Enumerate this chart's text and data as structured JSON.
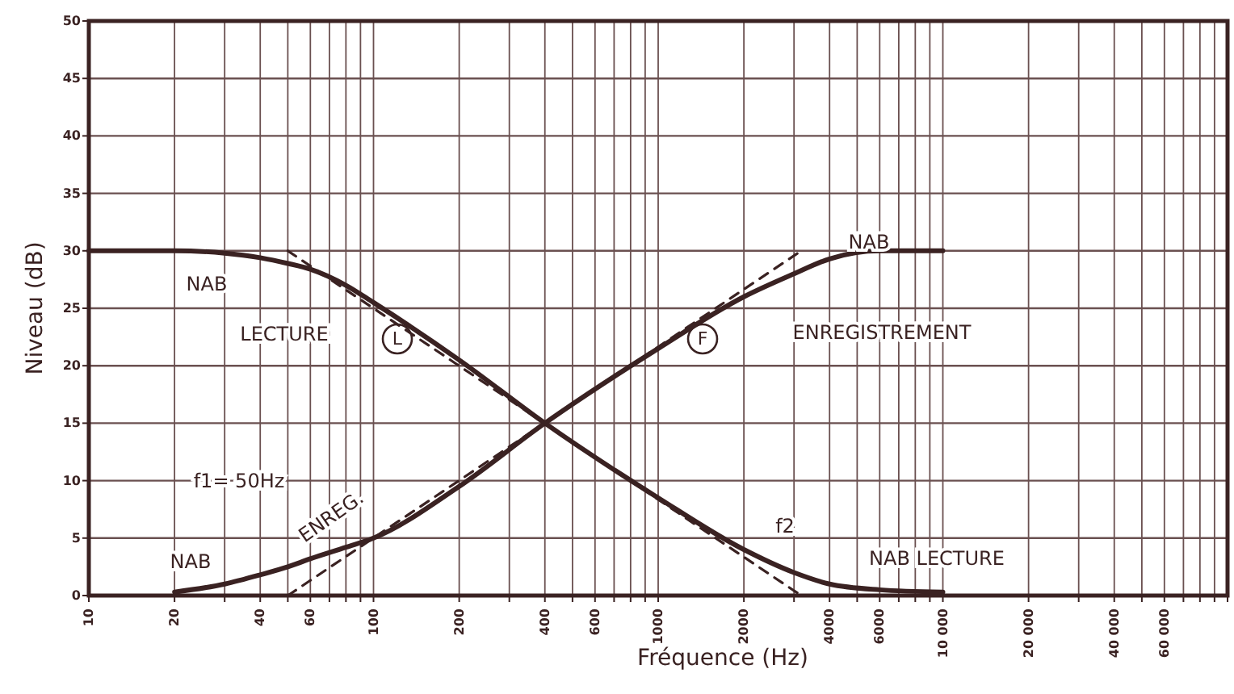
{
  "chart_data": {
    "type": "line",
    "xlabel": "Fréquence (Hz)",
    "ylabel": "Niveau (dB)",
    "log": "x",
    "grid": true,
    "xlim": [
      10,
      100000
    ],
    "ylim": [
      0,
      50
    ],
    "xticks": [
      10,
      20,
      {
        "value": 30,
        "label": null
      },
      40,
      {
        "value": 50,
        "label": null
      },
      60,
      {
        "value": 70,
        "label": null
      },
      {
        "value": 80,
        "label": null
      },
      {
        "value": 90,
        "label": null
      },
      100,
      200,
      {
        "value": 300,
        "label": null
      },
      400,
      {
        "value": 500,
        "label": null
      },
      600,
      {
        "value": 700,
        "label": null
      },
      {
        "value": 800,
        "label": null
      },
      {
        "value": 900,
        "label": null
      },
      1000,
      2000,
      {
        "value": 3000,
        "label": null
      },
      4000,
      {
        "value": 5000,
        "label": null
      },
      6000,
      {
        "value": 7000,
        "label": null
      },
      {
        "value": 8000,
        "label": null
      },
      {
        "value": 9000,
        "label": null
      },
      {
        "value": 10000,
        "label": "10 000"
      },
      {
        "value": 20000,
        "label": "20 000"
      },
      {
        "value": 30000,
        "label": null
      },
      {
        "value": 40000,
        "label": "40 000"
      },
      {
        "value": 50000,
        "label": null
      },
      {
        "value": 60000,
        "label": "60 000"
      },
      {
        "value": 70000,
        "label": null
      },
      {
        "value": 80000,
        "label": null
      },
      {
        "value": 90000,
        "label": null
      },
      {
        "value": 100000,
        "label": null
      }
    ],
    "yticks": [
      0,
      5,
      10,
      15,
      20,
      25,
      30,
      35,
      40,
      45,
      50
    ],
    "series": [
      {
        "color": "#3a2222",
        "line_style": "solid",
        "x": [
          10,
          20,
          30,
          40,
          50,
          60,
          80,
          100,
          200,
          400,
          1000,
          2000,
          3000,
          4000,
          6000,
          10000
        ],
        "values": [
          30,
          30,
          29.8,
          29.4,
          28.9,
          28.4,
          27,
          25.5,
          20.5,
          15,
          8.5,
          4,
          2,
          1,
          0.5,
          0.3
        ]
      },
      {
        "color": "#3a2222",
        "line_style": "solid",
        "x": [
          20,
          30,
          40,
          50,
          60,
          80,
          100,
          200,
          400,
          1000,
          2000,
          3000,
          4000,
          6000,
          10000
        ],
        "values": [
          0.3,
          1,
          1.8,
          2.5,
          3.2,
          4.2,
          5,
          9.5,
          15,
          21.5,
          26,
          28,
          29.3,
          30,
          30
        ]
      },
      {
        "color": "#3a2222",
        "line_style": "dashed",
        "x": [
          50,
          3180
        ],
        "values": [
          30,
          0
        ]
      },
      {
        "color": "#3a2222",
        "line_style": "dashed",
        "x": [
          50,
          3180
        ],
        "values": [
          0,
          30
        ]
      }
    ],
    "annotations": [
      "NAB",
      "LECTURE",
      "L",
      "F",
      "NAB",
      "ENREGISTREMENT",
      "f1= 50Hz",
      "NAB",
      "ENREG.",
      "f2",
      "NAB LECTURE"
    ]
  }
}
